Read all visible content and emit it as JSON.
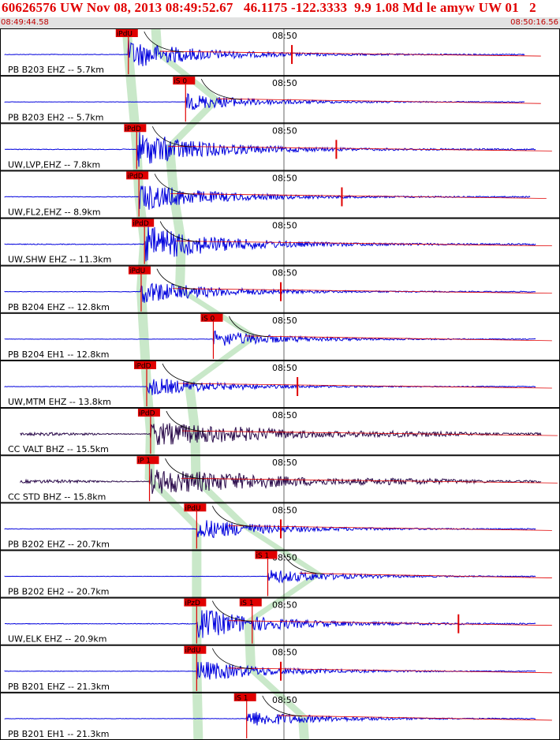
{
  "header": {
    "title": "60626576 UW Nov 08, 2013 08:49:52.67   46.1175 -122.3333  9.9 1.08 Md le amyw UW 01   2",
    "start_time": "08:49:44.58",
    "end_time": "08:50:16.56"
  },
  "tick_label": "08:50",
  "colors": {
    "trace_blue": "#0000dd",
    "trace_dark": "#2a0a4a",
    "pick_red": "#e00000",
    "phase_green": "#c3e6c3",
    "border": "#000000"
  },
  "panels": [
    {
      "label": "PB B203 EHZ -- 5.7km",
      "picks": [
        {
          "label": "iPdU",
          "t": 0.217
        }
      ],
      "amp": 0.6,
      "color": "blue",
      "end": 0.94,
      "mark": 0.52
    },
    {
      "label": "PB B203 EH2 -- 5.7km",
      "picks": [
        {
          "label": "iS 0",
          "t": 0.32
        }
      ],
      "amp": 0.35,
      "color": "blue",
      "end": 0.94,
      "mark": null
    },
    {
      "label": "UW,LVP,EHZ -- 7.8km",
      "picks": [
        {
          "label": "iPdD",
          "t": 0.232
        }
      ],
      "amp": 0.75,
      "color": "blue",
      "end": 0.96,
      "mark": 0.6
    },
    {
      "label": "UW,FL2,EHZ -- 8.9km",
      "picks": [
        {
          "label": "iPdD",
          "t": 0.236
        }
      ],
      "amp": 0.6,
      "color": "blue",
      "end": 0.95,
      "mark": 0.61
    },
    {
      "label": "UW,SHW EHZ -- 11.3km",
      "picks": [
        {
          "label": "iPdD",
          "t": 0.246
        }
      ],
      "amp": 0.8,
      "color": "blue",
      "end": 0.96,
      "mark": null
    },
    {
      "label": "PB B204 EHZ -- 12.8km",
      "picks": [
        {
          "label": "iPdU",
          "t": 0.24
        }
      ],
      "amp": 0.5,
      "color": "blue",
      "end": 0.96,
      "mark": 0.5
    },
    {
      "label": "PB B204 EH1 -- 12.8km",
      "picks": [
        {
          "label": "iS 0",
          "t": 0.37
        }
      ],
      "amp": 0.35,
      "color": "blue",
      "end": 0.96,
      "mark": null
    },
    {
      "label": "UW,MTM EHZ -- 13.8km",
      "picks": [
        {
          "label": "iPdD",
          "t": 0.25
        }
      ],
      "amp": 0.4,
      "color": "blue",
      "end": 0.96,
      "mark": 0.53
    },
    {
      "label": "CC VALT BHZ -- 15.5km",
      "picks": [
        {
          "label": "iPdD",
          "t": 0.257
        }
      ],
      "amp": 0.5,
      "color": "dark",
      "end": 0.97,
      "mark": null
    },
    {
      "label": "CC STD BHZ -- 15.8km",
      "picks": [
        {
          "label": "iP 1",
          "t": 0.255
        }
      ],
      "amp": 0.55,
      "color": "dark",
      "end": 0.97,
      "mark": null
    },
    {
      "label": "PB B202 EHZ -- 20.7km",
      "picks": [
        {
          "label": "iPdU",
          "t": 0.34
        }
      ],
      "amp": 0.45,
      "color": "blue",
      "end": 0.96,
      "mark": 0.5
    },
    {
      "label": "PB B202 EH2 -- 20.7km",
      "picks": [
        {
          "label": "iS 1",
          "t": 0.468
        }
      ],
      "amp": 0.3,
      "color": "blue",
      "end": 0.96,
      "mark": null
    },
    {
      "label": "UW,ELK EHZ -- 20.9km",
      "picks": [
        {
          "label": "iPzD",
          "t": 0.34
        },
        {
          "label": "iS 1",
          "t": 0.44
        }
      ],
      "amp": 0.65,
      "color": "blue",
      "end": 0.96,
      "mark": 0.82
    },
    {
      "label": "PB B201 EHZ -- 21.3km",
      "picks": [
        {
          "label": "iPdU",
          "t": 0.34
        }
      ],
      "amp": 0.45,
      "color": "blue",
      "end": 0.96,
      "mark": 0.5
    },
    {
      "label": "PB B201 EH1 -- 21.3km",
      "picks": [
        {
          "label": "iS 1",
          "t": 0.43
        }
      ],
      "amp": 0.35,
      "color": "blue",
      "end": 0.96,
      "mark": null
    }
  ]
}
